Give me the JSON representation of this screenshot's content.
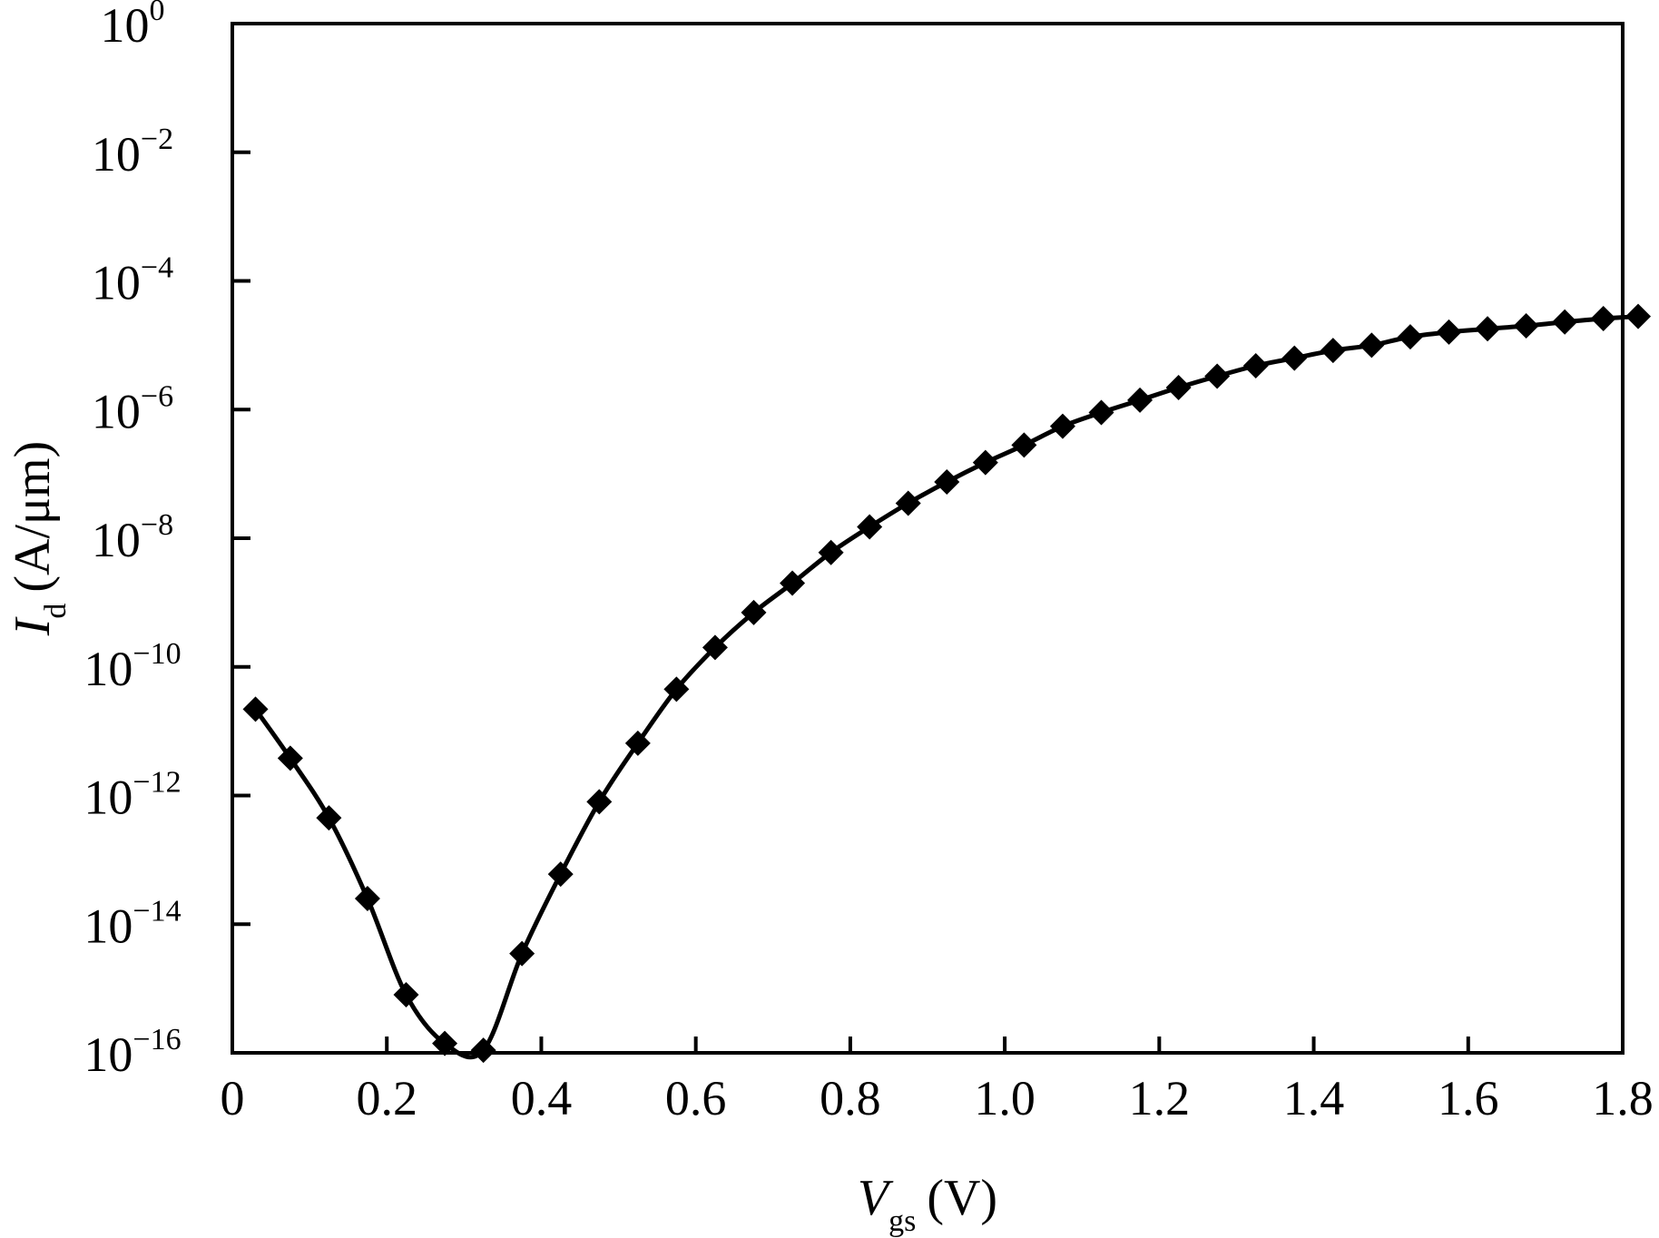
{
  "chart_data": {
    "type": "line",
    "xlabel": {
      "symbol": "V",
      "subscript": "gs",
      "unit": "(V)"
    },
    "ylabel": {
      "symbol": "I",
      "subscript": "d",
      "unit": "(A/μm)"
    },
    "xlim": [
      0,
      1.8
    ],
    "ylim": [
      1e-16,
      1
    ],
    "yscale": "log",
    "x_ticks": [
      {
        "value": 0,
        "label": "0"
      },
      {
        "value": 0.2,
        "label": "0.2"
      },
      {
        "value": 0.4,
        "label": "0.4"
      },
      {
        "value": 0.6,
        "label": "0.6"
      },
      {
        "value": 0.8,
        "label": "0.8"
      },
      {
        "value": 1.0,
        "label": "1.0"
      },
      {
        "value": 1.2,
        "label": "1.2"
      },
      {
        "value": 1.4,
        "label": "1.4"
      },
      {
        "value": 1.6,
        "label": "1.6"
      },
      {
        "value": 1.8,
        "label": "1.8"
      }
    ],
    "y_ticks": [
      {
        "exp": 0,
        "base": "10",
        "sup": "0"
      },
      {
        "exp": -2,
        "base": "10",
        "sup": "−2"
      },
      {
        "exp": -4,
        "base": "10",
        "sup": "−4"
      },
      {
        "exp": -6,
        "base": "10",
        "sup": "−6"
      },
      {
        "exp": -8,
        "base": "10",
        "sup": "−8"
      },
      {
        "exp": -10,
        "base": "10",
        "sup": "−10"
      },
      {
        "exp": -12,
        "base": "10",
        "sup": "−12"
      },
      {
        "exp": -14,
        "base": "10",
        "sup": "−14"
      },
      {
        "exp": -16,
        "base": "10",
        "sup": "−16"
      }
    ],
    "grid": false,
    "series": [
      {
        "marker": "diamond",
        "color": "#000000",
        "points": [
          [
            0.03,
            2.2e-11
          ],
          [
            0.075,
            3.8e-12
          ],
          [
            0.125,
            4.5e-13
          ],
          [
            0.175,
            2.5e-14
          ],
          [
            0.225,
            8e-16
          ],
          [
            0.275,
            1.4e-16
          ],
          [
            0.325,
            1.1e-16
          ],
          [
            0.375,
            3.5e-15
          ],
          [
            0.425,
            6e-14
          ],
          [
            0.475,
            8e-13
          ],
          [
            0.525,
            6.5e-12
          ],
          [
            0.575,
            4.5e-11
          ],
          [
            0.625,
            2e-10
          ],
          [
            0.675,
            7e-10
          ],
          [
            0.725,
            2e-09
          ],
          [
            0.775,
            6e-09
          ],
          [
            0.825,
            1.5e-08
          ],
          [
            0.875,
            3.5e-08
          ],
          [
            0.925,
            7.5e-08
          ],
          [
            0.975,
            1.5e-07
          ],
          [
            1.025,
            2.8e-07
          ],
          [
            1.075,
            5.5e-07
          ],
          [
            1.125,
            9e-07
          ],
          [
            1.175,
            1.4e-06
          ],
          [
            1.225,
            2.2e-06
          ],
          [
            1.275,
            3.3e-06
          ],
          [
            1.325,
            4.8e-06
          ],
          [
            1.375,
            6.3e-06
          ],
          [
            1.425,
            8.3e-06
          ],
          [
            1.475,
            1e-05
          ],
          [
            1.525,
            1.35e-05
          ],
          [
            1.575,
            1.6e-05
          ],
          [
            1.625,
            1.8e-05
          ],
          [
            1.675,
            2e-05
          ],
          [
            1.725,
            2.3e-05
          ],
          [
            1.775,
            2.6e-05
          ],
          [
            1.82,
            2.8e-05
          ]
        ]
      }
    ]
  }
}
